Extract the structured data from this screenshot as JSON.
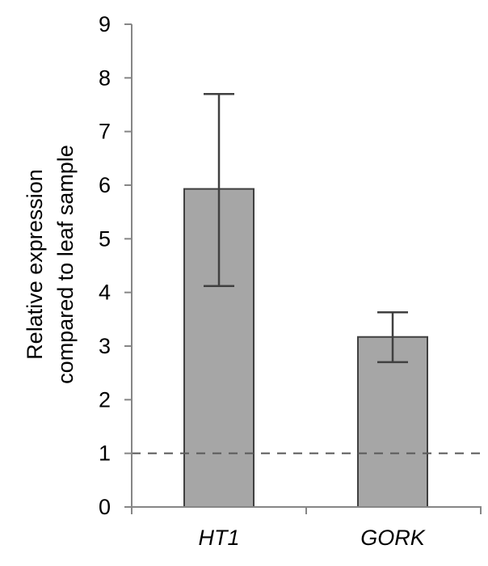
{
  "chart_data": {
    "type": "bar",
    "categories": [
      "HT1",
      "GORK"
    ],
    "values": [
      5.93,
      3.17
    ],
    "error_bars": [
      {
        "lower": 4.12,
        "upper": 7.7
      },
      {
        "lower": 2.7,
        "upper": 3.63
      }
    ],
    "ylabel_lines": [
      "Relative expression",
      "compared to leaf sample"
    ],
    "ylim": [
      0,
      9
    ],
    "yticks": [
      0,
      1,
      2,
      3,
      4,
      5,
      6,
      7,
      8,
      9
    ],
    "reference_line": 1,
    "grid": false,
    "legend": "none",
    "colors": {
      "bar_fill": "#a6a6a6",
      "bar_stroke": "#404040",
      "axis": "#868686",
      "error_bar": "#404040",
      "reference_line": "#595959"
    }
  }
}
